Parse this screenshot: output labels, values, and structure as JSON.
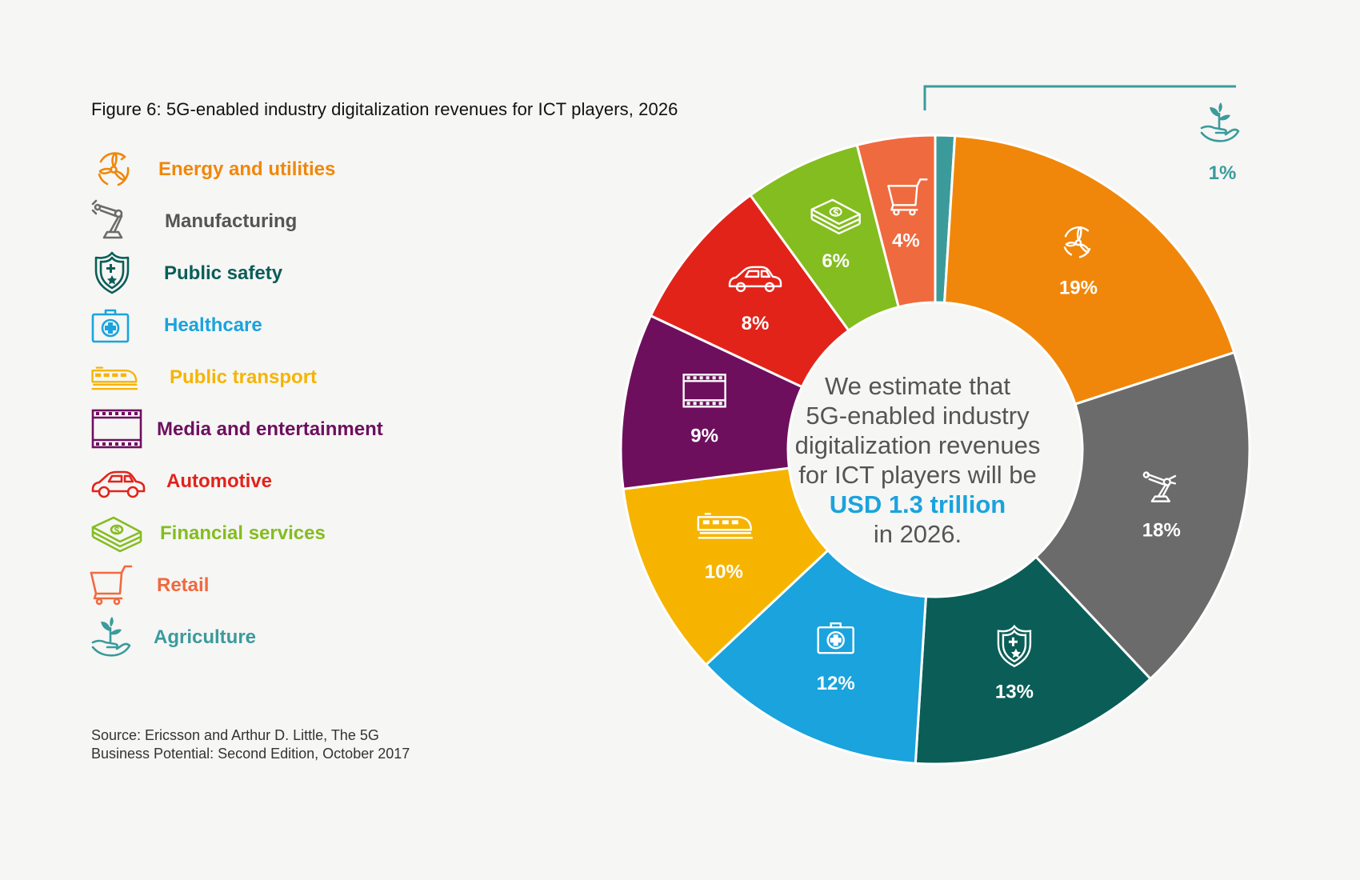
{
  "title": "Figure 6: 5G-enabled industry digitalization revenues for ICT players, 2026",
  "source_line1": "Source: Ericsson and Arthur D. Little, The 5G",
  "source_line2": "Business Potential: Second Edition, October 2017",
  "center": {
    "line1": "We estimate that",
    "line2": "5G-enabled industry",
    "line3": "digitalization revenues",
    "line4": "for ICT players will be",
    "highlight": "USD 1.3 trillion",
    "line6": "in 2026."
  },
  "legend": [
    {
      "label": "Energy and utilities",
      "icon": "wind-turbine-icon",
      "color": "#f0870a"
    },
    {
      "label": "Manufacturing",
      "icon": "robot-arm-icon",
      "color": "#6b6b6b"
    },
    {
      "label": "Public safety",
      "icon": "shield-icon",
      "color": "#0a5e57"
    },
    {
      "label": "Healthcare",
      "icon": "medical-kit-icon",
      "color": "#1aa3dd"
    },
    {
      "label": "Public transport",
      "icon": "train-icon",
      "color": "#f6b400"
    },
    {
      "label": "Media and entertainment",
      "icon": "film-strip-icon",
      "color": "#6e0f5e"
    },
    {
      "label": "Automotive",
      "icon": "car-icon",
      "color": "#e2231a"
    },
    {
      "label": "Financial services",
      "icon": "money-stack-icon",
      "color": "#84bd1f"
    },
    {
      "label": "Retail",
      "icon": "shopping-cart-icon",
      "color": "#ef6a3e"
    },
    {
      "label": "Agriculture",
      "icon": "plant-in-hand-icon",
      "color": "#3b9b9b"
    }
  ],
  "chart_data": {
    "type": "donut",
    "categories": [
      "Agriculture",
      "Energy and utilities",
      "Manufacturing",
      "Public safety",
      "Healthcare",
      "Public transport",
      "Media and entertainment",
      "Automotive",
      "Financial services",
      "Retail"
    ],
    "values": [
      1,
      19,
      18,
      13,
      12,
      10,
      9,
      8,
      6,
      4
    ],
    "labels": [
      "1%",
      "19%",
      "18%",
      "13%",
      "12%",
      "10%",
      "9%",
      "8%",
      "6%",
      "4%"
    ],
    "colors": [
      "#3b9b9b",
      "#f0870a",
      "#6b6b6b",
      "#0a5e57",
      "#1aa3dd",
      "#f6b400",
      "#6e0f5e",
      "#e2231a",
      "#84bd1f",
      "#ef6a3e"
    ],
    "icons": [
      "plant-in-hand-icon",
      "wind-turbine-icon",
      "robot-arm-icon",
      "shield-icon",
      "medical-kit-icon",
      "train-icon",
      "film-strip-icon",
      "car-icon",
      "money-stack-icon",
      "shopping-cart-icon"
    ],
    "unit": "%",
    "start": "top, clockwise"
  }
}
